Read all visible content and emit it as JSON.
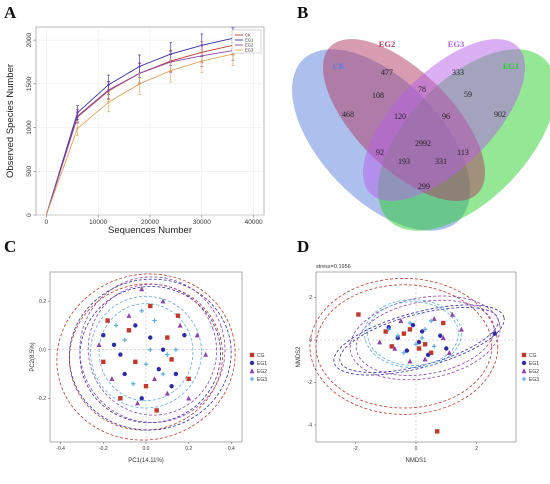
{
  "panels": {
    "a": "A",
    "b": "B",
    "c": "C",
    "d": "D"
  },
  "colors": {
    "CK": "#c0392b",
    "EG1": "#2c2ca8",
    "EG2": "#8e44ad",
    "EG3": "#5dade2"
  },
  "chart_data": [
    {
      "type": "line",
      "panel": "A",
      "xlabel": "Sequences Number",
      "ylabel": "Observed Species Number",
      "xlim": [
        -2000,
        42000
      ],
      "ylim": [
        0,
        2150
      ],
      "xticks": [
        0,
        10000,
        20000,
        30000,
        40000
      ],
      "yticks": [
        0,
        500,
        1000,
        1500,
        2000
      ],
      "legend_position": "top-right",
      "x": [
        0,
        6000,
        12000,
        18000,
        24000,
        30000,
        36000
      ],
      "series": [
        {
          "name": "CK",
          "color": "#c0392b",
          "values": [
            0,
            1120,
            1420,
            1620,
            1760,
            1860,
            1940
          ],
          "err": [
            0,
            70,
            100,
            120,
            120,
            120,
            110
          ]
        },
        {
          "name": "EG1",
          "color": "#2c2ca8",
          "values": [
            0,
            1170,
            1490,
            1700,
            1840,
            1940,
            2020
          ],
          "err": [
            0,
            80,
            110,
            130,
            130,
            130,
            120
          ]
        },
        {
          "name": "EG2",
          "color": "#8e44ad",
          "values": [
            0,
            1130,
            1430,
            1620,
            1750,
            1820,
            1880
          ],
          "err": [
            0,
            75,
            100,
            110,
            120,
            120,
            110
          ]
        },
        {
          "name": "EG3",
          "color": "#e1a35b",
          "values": [
            0,
            990,
            1290,
            1500,
            1650,
            1760,
            1840
          ],
          "err": [
            0,
            80,
            110,
            120,
            130,
            130,
            130
          ]
        }
      ]
    },
    {
      "type": "venn",
      "panel": "B",
      "sets": [
        "CK",
        "EG2",
        "EG3",
        "EG1"
      ],
      "set_colors": {
        "CK": "#5b7fdb",
        "EG2": "#b03a60",
        "EG3": "#b65fe8",
        "EG1": "#27d02b"
      },
      "regions": [
        {
          "sets": "CK",
          "value": 468
        },
        {
          "sets": "EG2",
          "value": 477
        },
        {
          "sets": "EG3",
          "value": 333
        },
        {
          "sets": "EG1",
          "value": 902
        },
        {
          "sets": "CK,EG2",
          "value": 108
        },
        {
          "sets": "EG2,EG3",
          "value": 78
        },
        {
          "sets": "EG3,EG1",
          "value": 59
        },
        {
          "sets": "CK,EG2,EG3",
          "value": 120
        },
        {
          "sets": "EG2,EG3,EG1",
          "value": 96
        },
        {
          "sets": "CK,EG1",
          "value": 299
        },
        {
          "sets": "CK,EG3",
          "value": 92
        },
        {
          "sets": "EG2,EG1",
          "value": 113
        },
        {
          "sets": "CK,EG2,EG3,EG1",
          "value": 2992
        },
        {
          "sets": "CK,EG3,EG1",
          "value": 193
        },
        {
          "sets": "CK,EG2,EG1",
          "value": 331
        }
      ]
    },
    {
      "type": "scatter",
      "panel": "C",
      "xlabel": "PC1(14.11%)",
      "ylabel": "PC2(8.5%)",
      "xlim": [
        -0.45,
        0.45
      ],
      "ylim": [
        -0.38,
        0.32
      ],
      "xticks": [
        -0.4,
        -0.2,
        0.0,
        0.2,
        0.4
      ],
      "yticks": [
        -0.2,
        0.0,
        0.2
      ],
      "legend": [
        "CG",
        "EG1",
        "EG2",
        "EG3"
      ],
      "legend_position": "right",
      "groups": [
        {
          "name": "CG",
          "color": "#c0392b",
          "shape": "square",
          "points": [
            [
              -0.18,
              0.12
            ],
            [
              0.02,
              0.18
            ],
            [
              -0.12,
              -0.2
            ],
            [
              0.1,
              0.05
            ],
            [
              -0.05,
              -0.05
            ],
            [
              0.2,
              -0.12
            ],
            [
              -0.2,
              -0.05
            ],
            [
              0.05,
              -0.25
            ],
            [
              0.15,
              0.14
            ],
            [
              -0.08,
              0.08
            ],
            [
              0.12,
              -0.04
            ],
            [
              0.0,
              -0.15
            ]
          ],
          "ellipses": [
            {
              "cx": 0.0,
              "cy": -0.03,
              "rx": 0.36,
              "ry": 0.3,
              "rot": -15
            },
            {
              "cx": 0.0,
              "cy": -0.03,
              "rx": 0.42,
              "ry": 0.34,
              "rot": -15
            }
          ]
        },
        {
          "name": "EG1",
          "color": "#2c2ca8",
          "shape": "circle",
          "points": [
            [
              -0.15,
              0.02
            ],
            [
              -0.05,
              0.1
            ],
            [
              0.08,
              0.0
            ],
            [
              -0.1,
              -0.1
            ],
            [
              0.12,
              -0.15
            ],
            [
              0.02,
              0.05
            ],
            [
              -0.2,
              0.06
            ],
            [
              0.18,
              0.06
            ],
            [
              -0.02,
              -0.2
            ],
            [
              0.06,
              -0.08
            ],
            [
              -0.12,
              -0.02
            ],
            [
              0.14,
              -0.1
            ]
          ],
          "ellipses": [
            {
              "cx": 0.02,
              "cy": -0.02,
              "rx": 0.33,
              "ry": 0.28,
              "rot": -10
            },
            {
              "cx": 0.02,
              "cy": -0.02,
              "rx": 0.38,
              "ry": 0.31,
              "rot": -10
            }
          ]
        },
        {
          "name": "EG2",
          "color": "#8e44ad",
          "shape": "triangle",
          "points": [
            [
              -0.02,
              0.25
            ],
            [
              0.24,
              0.06
            ],
            [
              0.1,
              -0.18
            ],
            [
              -0.16,
              -0.12
            ],
            [
              0.2,
              -0.2
            ],
            [
              -0.08,
              0.14
            ],
            [
              0.04,
              -0.12
            ],
            [
              0.16,
              0.1
            ],
            [
              -0.22,
              0.02
            ],
            [
              0.08,
              0.2
            ],
            [
              -0.04,
              -0.22
            ],
            [
              0.28,
              -0.02
            ]
          ],
          "ellipses": [
            {
              "cx": 0.03,
              "cy": 0.0,
              "rx": 0.3,
              "ry": 0.27,
              "rot": -20
            },
            {
              "cx": 0.03,
              "cy": 0.0,
              "rx": 0.34,
              "ry": 0.3,
              "rot": -20
            }
          ]
        },
        {
          "name": "EG3",
          "color": "#5dade2",
          "shape": "plus",
          "points": [
            [
              -0.1,
              0.04
            ],
            [
              0.04,
              0.12
            ],
            [
              0.0,
              -0.06
            ],
            [
              -0.06,
              -0.14
            ],
            [
              0.1,
              -0.02
            ],
            [
              -0.14,
              0.1
            ],
            [
              0.08,
              -0.1
            ],
            [
              0.02,
              0.0
            ],
            [
              -0.02,
              0.16
            ],
            [
              0.14,
              0.0
            ]
          ],
          "ellipses": [
            {
              "cx": 0.0,
              "cy": -0.01,
              "rx": 0.22,
              "ry": 0.2,
              "rot": 0
            },
            {
              "cx": 0.0,
              "cy": -0.01,
              "rx": 0.26,
              "ry": 0.23,
              "rot": 0
            }
          ]
        }
      ]
    },
    {
      "type": "scatter",
      "panel": "D",
      "annotation": "stress=0.1956",
      "xlabel": "NMDS1",
      "ylabel": "NMDS2",
      "xlim": [
        -3.3,
        3.3
      ],
      "ylim": [
        -4.8,
        3.2
      ],
      "xticks": [
        -2,
        0,
        2
      ],
      "yticks": [
        -4,
        -2,
        0,
        2
      ],
      "legend": [
        "CG",
        "EG1",
        "EG2",
        "EG3"
      ],
      "legend_position": "right",
      "groups": [
        {
          "name": "CG",
          "color": "#c0392b",
          "shape": "square",
          "points": [
            [
              -1.9,
              1.2
            ],
            [
              -0.4,
              0.3
            ],
            [
              0.5,
              -0.6
            ],
            [
              -0.8,
              -0.3
            ],
            [
              0.9,
              0.8
            ],
            [
              0.3,
              -0.2
            ],
            [
              -0.2,
              0.5
            ],
            [
              0.7,
              -4.3
            ],
            [
              -1.0,
              0.4
            ],
            [
              0.1,
              -0.4
            ]
          ],
          "ellipses": [
            {
              "cx": -0.4,
              "cy": -0.3,
              "rx": 2.9,
              "ry": 2.9,
              "rot": 0
            },
            {
              "cx": -0.4,
              "cy": -0.3,
              "rx": 3.1,
              "ry": 3.2,
              "rot": 0
            }
          ]
        },
        {
          "name": "EG1",
          "color": "#2c2ca8",
          "shape": "circle",
          "points": [
            [
              -0.6,
              0.1
            ],
            [
              0.2,
              0.4
            ],
            [
              -0.3,
              -0.5
            ],
            [
              0.8,
              0.2
            ],
            [
              -0.9,
              0.6
            ],
            [
              0.1,
              -0.1
            ],
            [
              1.0,
              -0.4
            ],
            [
              2.6,
              0.3
            ],
            [
              -0.1,
              0.7
            ],
            [
              0.4,
              -0.7
            ]
          ],
          "ellipses": [
            {
              "cx": 0.1,
              "cy": 0.0,
              "rx": 2.7,
              "ry": 1.2,
              "rot": -15
            },
            {
              "cx": 0.1,
              "cy": 0.0,
              "rx": 2.9,
              "ry": 1.3,
              "rot": -15
            }
          ]
        },
        {
          "name": "EG2",
          "color": "#8e44ad",
          "shape": "triangle",
          "points": [
            [
              -0.5,
              0.9
            ],
            [
              0.6,
              1.0
            ],
            [
              1.1,
              -0.6
            ],
            [
              -0.7,
              -0.4
            ],
            [
              0.3,
              -0.9
            ],
            [
              1.5,
              0.5
            ],
            [
              -1.2,
              -0.1
            ],
            [
              0.9,
              0.1
            ],
            [
              -0.2,
              -1.0
            ],
            [
              1.2,
              1.2
            ]
          ],
          "ellipses": [
            {
              "cx": 0.3,
              "cy": 0.1,
              "rx": 2.3,
              "ry": 1.7,
              "rot": -10
            },
            {
              "cx": 0.3,
              "cy": 0.1,
              "rx": 2.5,
              "ry": 1.9,
              "rot": -10
            }
          ]
        },
        {
          "name": "EG3",
          "color": "#5dade2",
          "shape": "plus",
          "points": [
            [
              -0.2,
              0.8
            ],
            [
              0.3,
              0.5
            ],
            [
              -0.6,
              0.2
            ],
            [
              0.6,
              -0.3
            ],
            [
              0.0,
              -0.2
            ],
            [
              -0.4,
              -0.6
            ],
            [
              0.5,
              0.9
            ],
            [
              -0.9,
              0.5
            ],
            [
              0.2,
              0.1
            ]
          ],
          "ellipses": [
            {
              "cx": -0.1,
              "cy": 0.3,
              "rx": 1.5,
              "ry": 1.5,
              "rot": 0
            },
            {
              "cx": -0.1,
              "cy": 0.3,
              "rx": 1.6,
              "ry": 1.6,
              "rot": 0
            }
          ]
        }
      ]
    }
  ]
}
